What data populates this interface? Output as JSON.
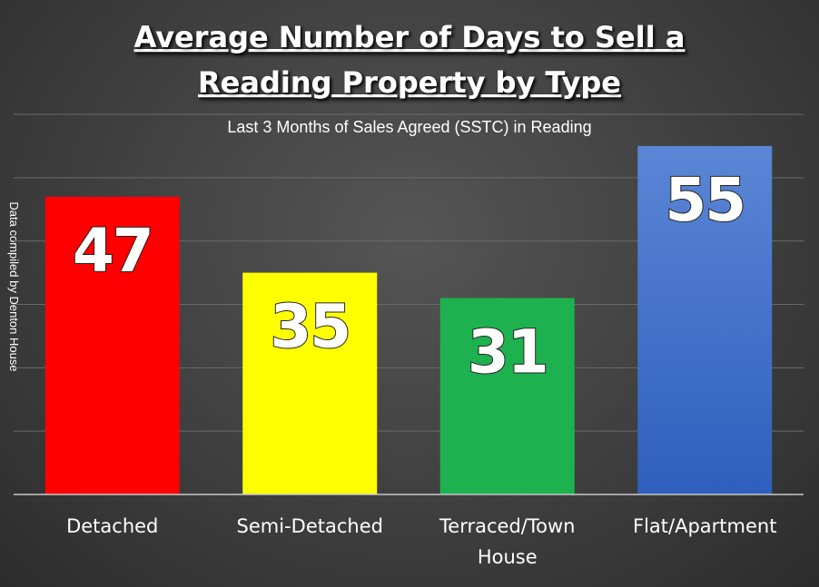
{
  "chart_data": {
    "type": "bar",
    "title_lines": [
      "Average Number of Days to Sell a",
      "Reading Property by Type"
    ],
    "subtitle": "Last 3 Months of Sales Agreed (SSTC) in Reading",
    "side_note": "Data compiled by Denton House",
    "categories": [
      "Detached",
      "Semi-Detached",
      "Terraced/Town House",
      "Flat/Apartment"
    ],
    "category_lines": [
      [
        "Detached"
      ],
      [
        "Semi-Detached"
      ],
      [
        "Terraced/Town",
        "House"
      ],
      [
        "Flat/Apartment"
      ]
    ],
    "values": [
      47,
      35,
      31,
      55
    ],
    "colors": [
      {
        "top": "#ff0000",
        "bottom": "#ff0000"
      },
      {
        "top": "#ffff00",
        "bottom": "#ffff00"
      },
      {
        "top": "#1db24f",
        "bottom": "#1db24f"
      },
      {
        "top": "#5b86d6",
        "bottom": "#2f5fbd"
      }
    ],
    "ylim": [
      0,
      60
    ],
    "grid": true,
    "xlabel": "",
    "ylabel": ""
  }
}
